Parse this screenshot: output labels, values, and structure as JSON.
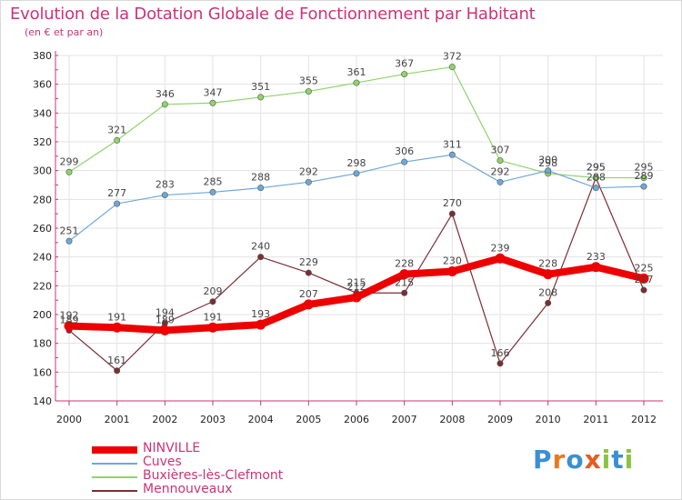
{
  "header": {
    "title": "Evolution de la Dotation Globale de Fonctionnement par Habitant",
    "subtitle": "(en € et par an)"
  },
  "logo": {
    "text": "Proxiti"
  },
  "colors": {
    "title": "#cc3377",
    "grid": "#e3e3e3",
    "axis": "#cc3377"
  },
  "chart_data": {
    "type": "line",
    "title": "Evolution de la Dotation Globale de Fonctionnement par Habitant",
    "subtitle": "(en € et par an)",
    "xlabel": "",
    "ylabel": "",
    "x": [
      "2000",
      "2001",
      "2002",
      "2003",
      "2004",
      "2005",
      "2006",
      "2007",
      "2008",
      "2009",
      "2010",
      "2011",
      "2012"
    ],
    "ylim": [
      140,
      380
    ],
    "yticks": [
      140,
      160,
      180,
      200,
      220,
      240,
      260,
      280,
      300,
      320,
      340,
      360,
      380
    ],
    "grid": true,
    "legend": "bottom-left",
    "series": [
      {
        "name": "NINVILLE",
        "values": [
          192,
          191,
          189,
          191,
          193,
          207,
          212,
          228,
          230,
          239,
          228,
          233,
          225
        ],
        "color": "#ee0000",
        "labels": [
          "192",
          "191",
          "189",
          "191",
          "193",
          "207",
          "212",
          "228",
          "230",
          "239",
          "228",
          "233",
          "225"
        ]
      },
      {
        "name": "Cuves",
        "values": [
          251,
          277,
          283,
          285,
          288,
          292,
          298,
          306,
          311,
          292,
          300,
          288,
          289
        ],
        "color": "#6fa8d6",
        "labels": [
          "251",
          "277",
          "283",
          "285",
          "288",
          "292",
          "298",
          "306",
          "311",
          "292",
          "300",
          "288",
          "289"
        ]
      },
      {
        "name": "Buxières-lès-Clefmont",
        "values": [
          299,
          321,
          346,
          347,
          351,
          355,
          361,
          367,
          372,
          307,
          298,
          295,
          295
        ],
        "color": "#8fd36b",
        "labels": [
          "299",
          "321",
          "346",
          "347",
          "351",
          "355",
          "361",
          "367",
          "372",
          "307",
          "298",
          "295",
          "295"
        ]
      },
      {
        "name": "Mennouveaux",
        "values": [
          189,
          161,
          194,
          209,
          240,
          229,
          215,
          215,
          270,
          166,
          208,
          295,
          217
        ],
        "color": "#7a2e35",
        "labels": [
          "189",
          "161",
          "194",
          "209",
          "240",
          "229",
          "215",
          "215",
          "270",
          "166",
          "208",
          "295",
          "217"
        ]
      }
    ]
  }
}
